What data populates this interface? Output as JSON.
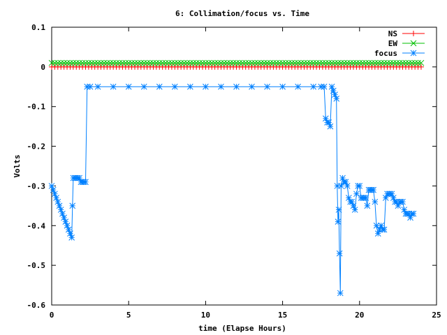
{
  "chart_data": {
    "type": "line",
    "title": "6: Collimation/focus vs. Time",
    "xlabel": "time (Elapse Hours)",
    "ylabel": "Volts",
    "xlim": [
      0,
      25
    ],
    "ylim": [
      -0.6,
      0.1
    ],
    "xticks": [
      "0",
      "5",
      "10",
      "15",
      "20",
      "25"
    ],
    "yticks": [
      "0.1",
      "0",
      "-0.1",
      "-0.2",
      "-0.3",
      "-0.4",
      "-0.5",
      "-0.6"
    ],
    "grid": false,
    "legend_position": "top-right",
    "series": [
      {
        "name": "NS",
        "color": "#ff0000",
        "marker": "plus",
        "constant": {
          "from": 0,
          "to": 24,
          "step": 0.2,
          "value": 0.0
        }
      },
      {
        "name": "EW",
        "color": "#00c000",
        "marker": "cross",
        "constant": {
          "from": 0,
          "to": 24,
          "step": 0.2,
          "value": 0.01
        }
      },
      {
        "name": "focus",
        "color": "#0080ff",
        "marker": "star",
        "points": [
          [
            0.0,
            -0.3
          ],
          [
            0.1,
            -0.31
          ],
          [
            0.2,
            -0.32
          ],
          [
            0.3,
            -0.33
          ],
          [
            0.4,
            -0.34
          ],
          [
            0.5,
            -0.35
          ],
          [
            0.6,
            -0.36
          ],
          [
            0.7,
            -0.37
          ],
          [
            0.8,
            -0.38
          ],
          [
            0.9,
            -0.39
          ],
          [
            1.0,
            -0.4
          ],
          [
            1.1,
            -0.41
          ],
          [
            1.2,
            -0.42
          ],
          [
            1.3,
            -0.43
          ],
          [
            1.35,
            -0.35
          ],
          [
            1.4,
            -0.28
          ],
          [
            1.5,
            -0.28
          ],
          [
            1.6,
            -0.28
          ],
          [
            1.7,
            -0.28
          ],
          [
            1.8,
            -0.28
          ],
          [
            1.9,
            -0.29
          ],
          [
            2.0,
            -0.29
          ],
          [
            2.1,
            -0.29
          ],
          [
            2.2,
            -0.29
          ],
          [
            2.3,
            -0.05
          ],
          [
            2.5,
            -0.05
          ],
          [
            3,
            -0.05
          ],
          [
            4,
            -0.05
          ],
          [
            5,
            -0.05
          ],
          [
            6,
            -0.05
          ],
          [
            7,
            -0.05
          ],
          [
            8,
            -0.05
          ],
          [
            9,
            -0.05
          ],
          [
            10,
            -0.05
          ],
          [
            11,
            -0.05
          ],
          [
            12,
            -0.05
          ],
          [
            13,
            -0.05
          ],
          [
            14,
            -0.05
          ],
          [
            15,
            -0.05
          ],
          [
            16,
            -0.05
          ],
          [
            17,
            -0.05
          ],
          [
            17.5,
            -0.05
          ],
          [
            17.7,
            -0.05
          ],
          [
            17.8,
            -0.13
          ],
          [
            17.9,
            -0.14
          ],
          [
            18.0,
            -0.14
          ],
          [
            18.1,
            -0.15
          ],
          [
            18.2,
            -0.05
          ],
          [
            18.3,
            -0.06
          ],
          [
            18.4,
            -0.07
          ],
          [
            18.5,
            -0.08
          ],
          [
            18.55,
            -0.3
          ],
          [
            18.6,
            -0.39
          ],
          [
            18.65,
            -0.36
          ],
          [
            18.7,
            -0.47
          ],
          [
            18.75,
            -0.57
          ],
          [
            18.8,
            -0.3
          ],
          [
            18.9,
            -0.28
          ],
          [
            19.0,
            -0.29
          ],
          [
            19.1,
            -0.29
          ],
          [
            19.2,
            -0.3
          ],
          [
            19.3,
            -0.33
          ],
          [
            19.4,
            -0.34
          ],
          [
            19.5,
            -0.34
          ],
          [
            19.6,
            -0.35
          ],
          [
            19.7,
            -0.36
          ],
          [
            19.8,
            -0.32
          ],
          [
            19.9,
            -0.3
          ],
          [
            20.0,
            -0.3
          ],
          [
            20.1,
            -0.33
          ],
          [
            20.2,
            -0.33
          ],
          [
            20.3,
            -0.33
          ],
          [
            20.4,
            -0.33
          ],
          [
            20.5,
            -0.35
          ],
          [
            20.6,
            -0.31
          ],
          [
            20.7,
            -0.31
          ],
          [
            20.8,
            -0.31
          ],
          [
            20.9,
            -0.31
          ],
          [
            21.0,
            -0.34
          ],
          [
            21.1,
            -0.4
          ],
          [
            21.2,
            -0.42
          ],
          [
            21.3,
            -0.41
          ],
          [
            21.4,
            -0.4
          ],
          [
            21.5,
            -0.41
          ],
          [
            21.6,
            -0.41
          ],
          [
            21.7,
            -0.33
          ],
          [
            21.8,
            -0.32
          ],
          [
            21.9,
            -0.32
          ],
          [
            22.0,
            -0.32
          ],
          [
            22.1,
            -0.32
          ],
          [
            22.2,
            -0.33
          ],
          [
            22.3,
            -0.34
          ],
          [
            22.4,
            -0.34
          ],
          [
            22.5,
            -0.35
          ],
          [
            22.6,
            -0.34
          ],
          [
            22.7,
            -0.34
          ],
          [
            22.8,
            -0.34
          ],
          [
            22.9,
            -0.36
          ],
          [
            23.0,
            -0.37
          ],
          [
            23.1,
            -0.37
          ],
          [
            23.2,
            -0.37
          ],
          [
            23.3,
            -0.38
          ],
          [
            23.4,
            -0.37
          ],
          [
            23.5,
            -0.37
          ]
        ]
      }
    ]
  }
}
